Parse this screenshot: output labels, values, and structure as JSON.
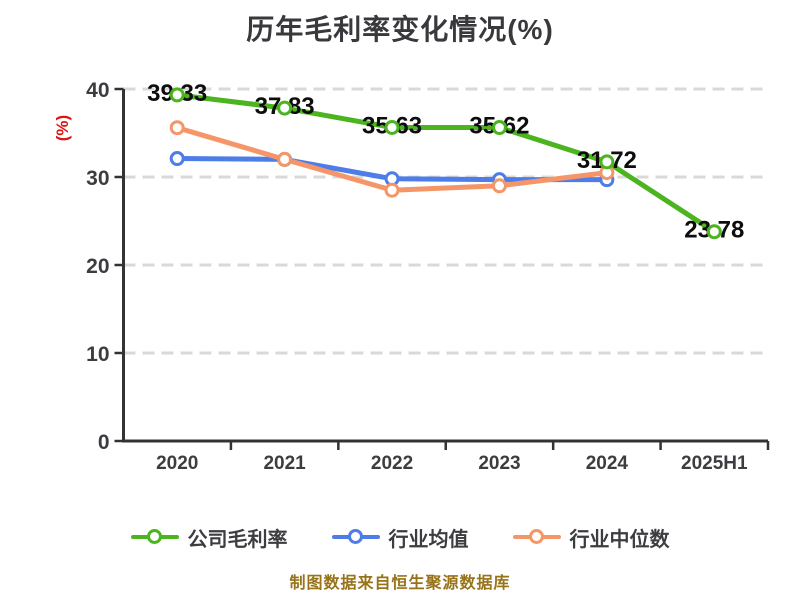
{
  "title": "历年毛利率变化情况(%)",
  "caption": "制图数据来自恒生聚源数据库",
  "colors": {
    "company": "#4cb41f",
    "industry_avg": "#4e7ce8",
    "industry_median": "#f59669",
    "axis": "#333333",
    "grid": "#d9d9d9",
    "tick_text": "#3d3d41",
    "title_text": "#39393d",
    "value_label_text": "#0d0d0d",
    "y_axis_title_text": "#e01212",
    "caption_text": "#97731a",
    "background": "#ffffff"
  },
  "legend": {
    "items": [
      {
        "label": "公司毛利率",
        "color": "#4cb41f"
      },
      {
        "label": "行业均值",
        "color": "#4e7ce8"
      },
      {
        "label": "行业中位数",
        "color": "#f59669"
      }
    ]
  },
  "chart_data": {
    "type": "line",
    "title": "历年毛利率变化情况(%)",
    "xlabel": "",
    "ylabel": "(%)",
    "categories": [
      "2020",
      "2021",
      "2022",
      "2023",
      "2024",
      "2025H1"
    ],
    "yticks": [
      0,
      10,
      20,
      30,
      40
    ],
    "ylim": [
      0,
      40
    ],
    "grid": "dashed-horizontal",
    "legend_position": "bottom",
    "series": [
      {
        "name": "公司毛利率",
        "color": "#4cb41f",
        "values": [
          39.33,
          37.83,
          35.63,
          35.62,
          31.72,
          23.78
        ],
        "labels": [
          "39.33",
          "37.83",
          "35.63",
          "35.62",
          "31.72",
          "23.78"
        ]
      },
      {
        "name": "行业均值",
        "color": "#4e7ce8",
        "values": [
          32.1,
          32.0,
          29.8,
          29.7,
          29.7,
          null
        ],
        "labels": null
      },
      {
        "name": "行业中位数",
        "color": "#f59669",
        "values": [
          35.6,
          32.0,
          28.5,
          29.0,
          30.5,
          null
        ],
        "labels": null
      }
    ]
  }
}
